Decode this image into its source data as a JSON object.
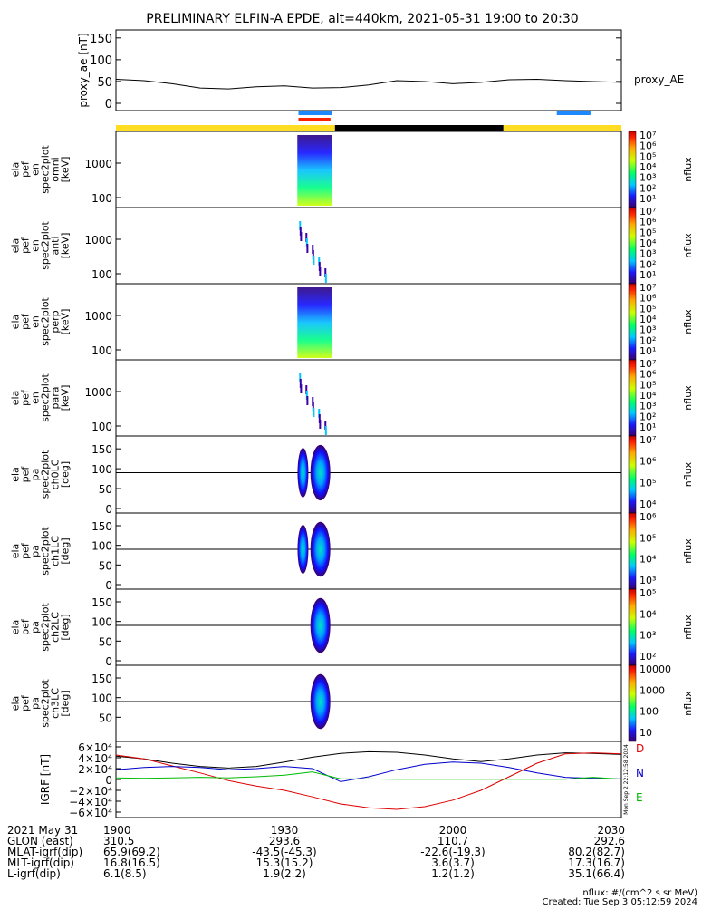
{
  "title": "PRELIMINARY ELFIN-A EPDE, alt=440km, 2021-05-31 19:00 to 20:30",
  "proxy_panel": {
    "ylabel": "proxy_ae [nT]",
    "legend": "proxy_AE",
    "yticks": [
      "150",
      "100",
      "50",
      "0"
    ],
    "ylim": [
      0,
      160
    ]
  },
  "spec_panels": [
    {
      "ylabel_lines": [
        "ela",
        "pef",
        "en",
        "spec2plot",
        "omni",
        "[keV]"
      ],
      "yticks": [
        "1000",
        "100"
      ],
      "zticks": [
        "10⁷",
        "10⁶",
        "10⁵",
        "10⁴",
        "10³",
        "10²",
        "10¹"
      ],
      "zlabel": "nflux"
    },
    {
      "ylabel_lines": [
        "ela",
        "pef",
        "en",
        "spec2plot",
        "anti",
        "[keV]"
      ],
      "yticks": [
        "1000",
        "100"
      ],
      "zticks": [
        "10⁷",
        "10⁶",
        "10⁵",
        "10⁴",
        "10³",
        "10²",
        "10¹"
      ],
      "zlabel": "nflux"
    },
    {
      "ylabel_lines": [
        "ela",
        "pef",
        "en",
        "spec2plot",
        "perp",
        "[keV]"
      ],
      "yticks": [
        "1000",
        "100"
      ],
      "zticks": [
        "10⁷",
        "10⁶",
        "10⁵",
        "10⁴",
        "10³",
        "10²",
        "10¹"
      ],
      "zlabel": "nflux"
    },
    {
      "ylabel_lines": [
        "ela",
        "pef",
        "en",
        "spec2plot",
        "para",
        "[keV]"
      ],
      "yticks": [
        "1000",
        "100"
      ],
      "zticks": [
        "10⁷",
        "10⁶",
        "10⁵",
        "10⁴",
        "10³",
        "10²",
        "10¹"
      ],
      "zlabel": "nflux"
    }
  ],
  "pa_panels": [
    {
      "ylabel_lines": [
        "ela",
        "pef",
        "pa",
        "spec2plot",
        "ch0LC",
        "[deg]"
      ],
      "yticks": [
        "150",
        "100",
        "50",
        "0"
      ],
      "zticks": [
        "10⁷",
        "10⁶",
        "10⁵",
        "10⁴"
      ],
      "zlabel": "nflux"
    },
    {
      "ylabel_lines": [
        "ela",
        "pef",
        "pa",
        "spec2plot",
        "ch1LC",
        "[deg]"
      ],
      "yticks": [
        "150",
        "100",
        "50",
        "0"
      ],
      "zticks": [
        "10⁶",
        "10⁵",
        "10⁴",
        "10³"
      ],
      "zlabel": "nflux"
    },
    {
      "ylabel_lines": [
        "ela",
        "pef",
        "pa",
        "spec2plot",
        "ch2LC",
        "[deg]"
      ],
      "yticks": [
        "150",
        "100",
        "50",
        "0"
      ],
      "zticks": [
        "10⁵",
        "10⁴",
        "10³",
        "10²"
      ],
      "zlabel": "nflux"
    },
    {
      "ylabel_lines": [
        "ela",
        "pef",
        "pa",
        "spec2plot",
        "ch3LC",
        "[deg]"
      ],
      "yticks": [
        "150",
        "100",
        "50"
      ],
      "zticks": [
        "10000",
        "1000",
        "100",
        "10"
      ],
      "zlabel": "nflux"
    }
  ],
  "igrf_panel": {
    "ylabel": "IGRF [nT]",
    "yticks": [
      "6×10⁴",
      "4×10⁴",
      "2×10⁴",
      "0",
      "−2×10⁴",
      "−4×10⁴",
      "−6×10⁴"
    ],
    "legend": [
      {
        "label": "D",
        "color": "#dd0000"
      },
      {
        "label": "N",
        "color": "#0000cc"
      },
      {
        "label": "E",
        "color": "#00bb00"
      }
    ],
    "side_note": "Mon Sep  2 22:12:58 2024"
  },
  "footer": {
    "rows": [
      {
        "label": "2021 May 31",
        "values": [
          "1900",
          "1930",
          "2000",
          "2030"
        ]
      },
      {
        "label": "GLON (east)",
        "values": [
          "310.5",
          "293.6",
          "110.7",
          "292.6"
        ]
      },
      {
        "label": "MLAT-igrf(dip)",
        "values": [
          "65.9(69.2)",
          "-43.5(-45.3)",
          "-22.6(-19.3)",
          "80.2(82.7)"
        ]
      },
      {
        "label": "MLT-igrf(dip)",
        "values": [
          "16.8(16.5)",
          "15.3(15.2)",
          "3.6(3.7)",
          "17.3(16.7)"
        ]
      },
      {
        "label": "L-igrf(dip)",
        "values": [
          "6.1(8.5)",
          "1.9(2.2)",
          "1.2(1.2)",
          "35.1(66.4)"
        ]
      }
    ],
    "units_note": "nflux: #/(cm^2 s sr MeV)",
    "created": "Created: Tue Sep  3 05:12:59 2024"
  },
  "chart_data": {
    "type": "line",
    "x_ticks_hhmm": [
      "1900",
      "1930",
      "2000",
      "2030"
    ],
    "xlim_minutes": [
      0,
      90
    ],
    "proxy_ae": {
      "minutes": [
        0,
        5,
        10,
        15,
        20,
        25,
        30,
        35,
        40,
        45,
        50,
        55,
        60,
        65,
        70,
        75,
        80,
        85,
        90
      ],
      "values": [
        55,
        52,
        45,
        35,
        33,
        38,
        40,
        35,
        36,
        42,
        52,
        50,
        45,
        48,
        54,
        55,
        52,
        50,
        48
      ]
    },
    "science_zone_bars_minutes": [
      {
        "start": 32.5,
        "end": 38.5,
        "color": "#1e88ff"
      },
      {
        "start": 78.5,
        "end": 84.5,
        "color": "#1e88ff"
      }
    ],
    "collection_bars_minutes": [
      {
        "start": 32.5,
        "end": 38.2,
        "color": "#ff2200"
      }
    ],
    "orbit_bar_segments": [
      {
        "start": 0,
        "end": 39,
        "color": "#ffdd22"
      },
      {
        "start": 39,
        "end": 69,
        "color": "#000000"
      },
      {
        "start": 69,
        "end": 90,
        "color": "#ffdd22"
      }
    ],
    "igrf": {
      "minutes": [
        0,
        5,
        10,
        15,
        20,
        25,
        30,
        35,
        40,
        45,
        50,
        55,
        60,
        65,
        70,
        75,
        80,
        85,
        90
      ],
      "total": [
        43000,
        38000,
        30000,
        24000,
        21000,
        24000,
        32000,
        41000,
        48000,
        51000,
        50000,
        45000,
        38000,
        33000,
        38000,
        45000,
        49000,
        48000,
        46000
      ],
      "D": [
        45000,
        38000,
        25000,
        12000,
        -2000,
        -12000,
        -20000,
        -32000,
        -45000,
        -52000,
        -55000,
        -50000,
        -38000,
        -20000,
        5000,
        30000,
        47000,
        49000,
        47000
      ],
      "N": [
        18000,
        22000,
        24000,
        22000,
        18000,
        20000,
        24000,
        20000,
        -4000,
        5000,
        18000,
        28000,
        32000,
        30000,
        22000,
        12000,
        4000,
        2000,
        1000
      ],
      "E": [
        3000,
        2000,
        3000,
        4000,
        3000,
        5000,
        8000,
        14000,
        1000,
        1000,
        500,
        500,
        500,
        500,
        500,
        500,
        500,
        4000,
        500
      ]
    }
  }
}
